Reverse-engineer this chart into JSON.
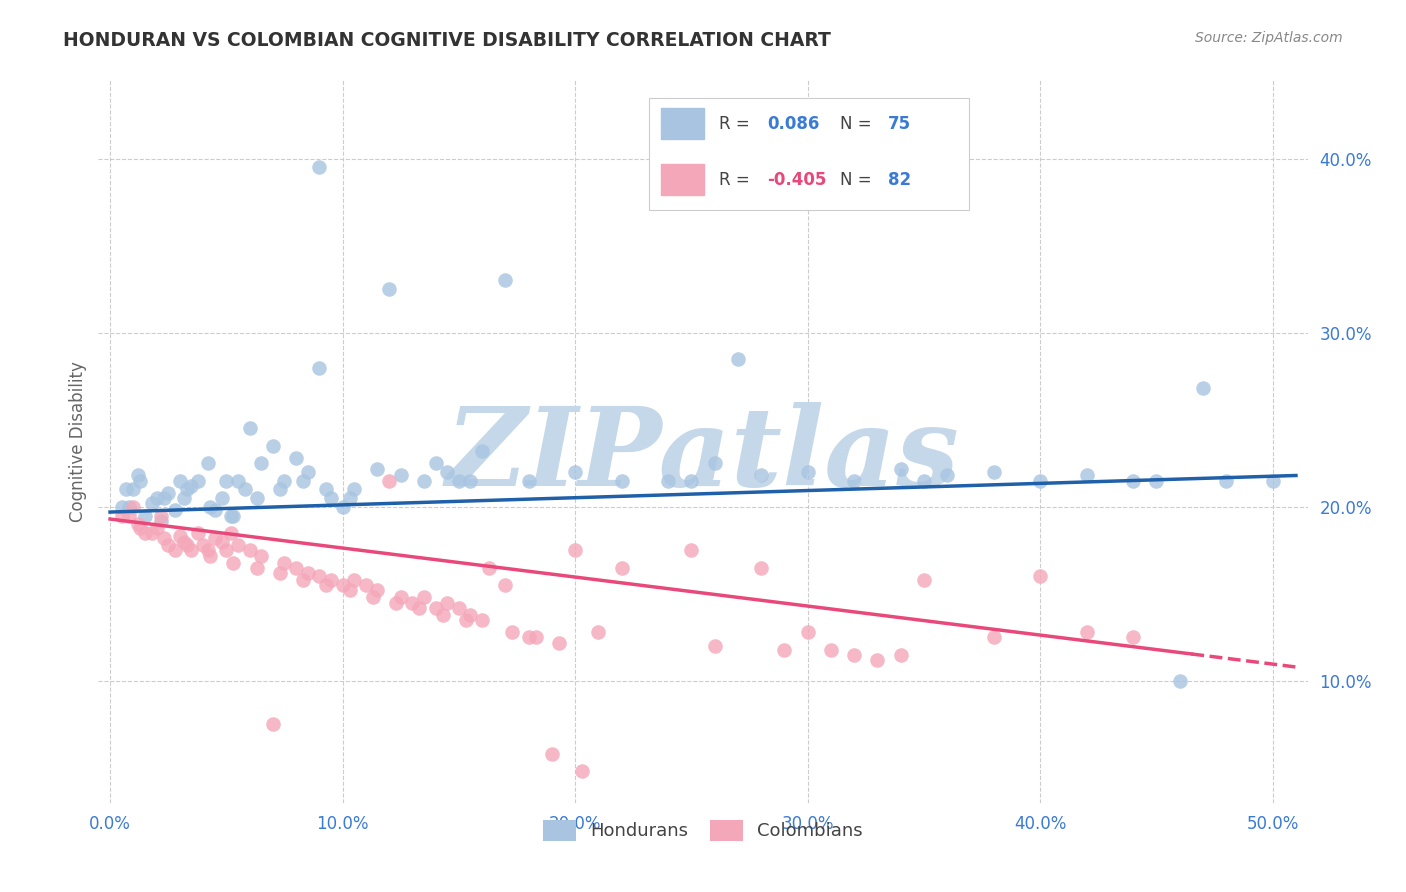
{
  "title": "HONDURAN VS COLOMBIAN COGNITIVE DISABILITY CORRELATION CHART",
  "source": "Source: ZipAtlas.com",
  "ylabel": "Cognitive Disability",
  "x_ticks": [
    0.0,
    0.1,
    0.2,
    0.3,
    0.4,
    0.5
  ],
  "x_tick_labels": [
    "0.0%",
    "10.0%",
    "20.0%",
    "30.0%",
    "40.0%",
    "50.0%"
  ],
  "y_ticks": [
    0.1,
    0.2,
    0.3,
    0.4
  ],
  "y_tick_labels": [
    "10.0%",
    "20.0%",
    "30.0%",
    "40.0%"
  ],
  "xlim": [
    -0.005,
    0.515
  ],
  "ylim": [
    0.03,
    0.445
  ],
  "legend_hondurans": "Hondurans",
  "legend_colombians": "Colombians",
  "r_hondurans": 0.086,
  "n_hondurans": 75,
  "r_colombians": -0.405,
  "n_colombians": 82,
  "scatter_color_hondurans": "#a8c4e0",
  "scatter_color_colombians": "#f4a7b9",
  "line_color_hondurans": "#2060a8",
  "line_color_colombians": "#e8497a",
  "background_color": "#ffffff",
  "grid_color": "#cccccc",
  "watermark": "ZIPatlas",
  "watermark_color": "#c5d8ea",
  "title_color": "#333333",
  "axis_label_color": "#666666",
  "tick_label_color": "#3a7bd5",
  "legend_r_color_hondurans": "#3a7bd5",
  "legend_r_color_colombians": "#e8497a",
  "legend_n_color": "#3a7bd5",
  "seed": 42,
  "line_h_x0": 0.0,
  "line_h_y0": 0.197,
  "line_h_x1": 0.51,
  "line_h_y1": 0.218,
  "line_c_x0": 0.0,
  "line_c_y0": 0.193,
  "line_c_x1": 0.51,
  "line_c_y1": 0.108,
  "line_c_solid_end": 0.465,
  "honduran_points_x": [
    0.09,
    0.12,
    0.17,
    0.09,
    0.27,
    0.47,
    0.01,
    0.02,
    0.03,
    0.008,
    0.015,
    0.025,
    0.035,
    0.045,
    0.055,
    0.012,
    0.022,
    0.032,
    0.042,
    0.052,
    0.018,
    0.028,
    0.038,
    0.048,
    0.058,
    0.065,
    0.075,
    0.085,
    0.095,
    0.105,
    0.115,
    0.125,
    0.135,
    0.145,
    0.155,
    0.07,
    0.08,
    0.06,
    0.14,
    0.16,
    0.18,
    0.2,
    0.22,
    0.24,
    0.26,
    0.28,
    0.3,
    0.32,
    0.34,
    0.36,
    0.38,
    0.4,
    0.42,
    0.44,
    0.46,
    0.48,
    0.5,
    0.05,
    0.1,
    0.15,
    0.25,
    0.35,
    0.45,
    0.013,
    0.023,
    0.033,
    0.043,
    0.053,
    0.063,
    0.073,
    0.083,
    0.093,
    0.103,
    0.005,
    0.007
  ],
  "honduran_points_y": [
    0.395,
    0.325,
    0.33,
    0.28,
    0.285,
    0.268,
    0.21,
    0.205,
    0.215,
    0.2,
    0.195,
    0.208,
    0.212,
    0.198,
    0.215,
    0.218,
    0.192,
    0.205,
    0.225,
    0.195,
    0.202,
    0.198,
    0.215,
    0.205,
    0.21,
    0.225,
    0.215,
    0.22,
    0.205,
    0.21,
    0.222,
    0.218,
    0.215,
    0.22,
    0.215,
    0.235,
    0.228,
    0.245,
    0.225,
    0.232,
    0.215,
    0.22,
    0.215,
    0.215,
    0.225,
    0.218,
    0.22,
    0.215,
    0.222,
    0.218,
    0.22,
    0.215,
    0.218,
    0.215,
    0.1,
    0.215,
    0.215,
    0.215,
    0.2,
    0.215,
    0.215,
    0.215,
    0.215,
    0.215,
    0.205,
    0.21,
    0.2,
    0.195,
    0.205,
    0.21,
    0.215,
    0.21,
    0.205,
    0.2,
    0.21
  ],
  "colombian_points_x": [
    0.008,
    0.012,
    0.018,
    0.022,
    0.028,
    0.032,
    0.038,
    0.042,
    0.048,
    0.052,
    0.01,
    0.015,
    0.02,
    0.025,
    0.03,
    0.035,
    0.04,
    0.045,
    0.05,
    0.055,
    0.06,
    0.065,
    0.07,
    0.075,
    0.08,
    0.085,
    0.09,
    0.095,
    0.1,
    0.105,
    0.11,
    0.115,
    0.12,
    0.125,
    0.13,
    0.135,
    0.14,
    0.145,
    0.15,
    0.155,
    0.16,
    0.17,
    0.18,
    0.19,
    0.2,
    0.21,
    0.22,
    0.25,
    0.26,
    0.28,
    0.29,
    0.3,
    0.31,
    0.32,
    0.33,
    0.34,
    0.35,
    0.38,
    0.4,
    0.42,
    0.44,
    0.005,
    0.013,
    0.023,
    0.033,
    0.043,
    0.053,
    0.063,
    0.073,
    0.083,
    0.093,
    0.103,
    0.113,
    0.123,
    0.133,
    0.143,
    0.153,
    0.163,
    0.173,
    0.183,
    0.193,
    0.203
  ],
  "colombian_points_y": [
    0.195,
    0.19,
    0.185,
    0.195,
    0.175,
    0.18,
    0.185,
    0.175,
    0.18,
    0.185,
    0.2,
    0.185,
    0.188,
    0.178,
    0.183,
    0.175,
    0.178,
    0.182,
    0.175,
    0.178,
    0.175,
    0.172,
    0.075,
    0.168,
    0.165,
    0.162,
    0.16,
    0.158,
    0.155,
    0.158,
    0.155,
    0.152,
    0.215,
    0.148,
    0.145,
    0.148,
    0.142,
    0.145,
    0.142,
    0.138,
    0.135,
    0.155,
    0.125,
    0.058,
    0.175,
    0.128,
    0.165,
    0.175,
    0.12,
    0.165,
    0.118,
    0.128,
    0.118,
    0.115,
    0.112,
    0.115,
    0.158,
    0.125,
    0.16,
    0.128,
    0.125,
    0.195,
    0.188,
    0.182,
    0.178,
    0.172,
    0.168,
    0.165,
    0.162,
    0.158,
    0.155,
    0.152,
    0.148,
    0.145,
    0.142,
    0.138,
    0.135,
    0.165,
    0.128,
    0.125,
    0.122,
    0.048
  ]
}
